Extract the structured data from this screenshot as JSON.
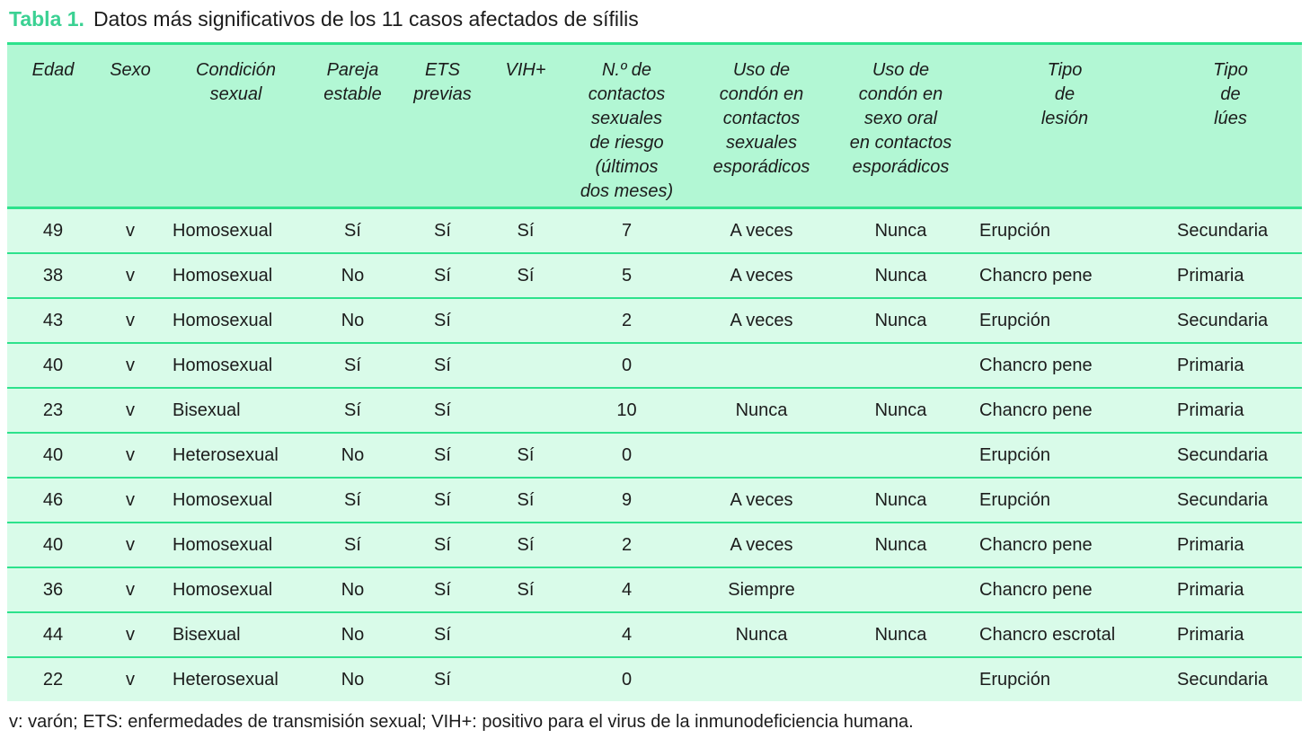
{
  "title": {
    "label": "Tabla 1.",
    "text": "Datos más significativos de los 11 casos afectados de sífilis"
  },
  "table": {
    "columns": [
      {
        "id": "edad",
        "header": "Edad"
      },
      {
        "id": "sexo",
        "header": "Sexo"
      },
      {
        "id": "condicion-sexual",
        "header": "Condición\nsexual"
      },
      {
        "id": "pareja-estable",
        "header": "Pareja\nestable"
      },
      {
        "id": "ets-previas",
        "header": "ETS\nprevias"
      },
      {
        "id": "vih",
        "header": "VIH+"
      },
      {
        "id": "contactos-riesgo",
        "header": "N.º de\ncontactos\nsexuales\nde riesgo\n(últimos\ndos meses)"
      },
      {
        "id": "condon-contactos",
        "header": "Uso de\ncondón en\ncontactos\nsexuales\nesporádicos"
      },
      {
        "id": "condon-oral",
        "header": "Uso de\ncondón en\nsexo oral\nen contactos\nesporádicos"
      },
      {
        "id": "tipo-lesion",
        "header": "Tipo\nde\nlesión"
      },
      {
        "id": "tipo-lues",
        "header": "Tipo\nde\nlúes"
      }
    ],
    "rows": [
      [
        "49",
        "v",
        "Homosexual",
        "Sí",
        "Sí",
        "Sí",
        "7",
        "A veces",
        "Nunca",
        "Erupción",
        "Secundaria"
      ],
      [
        "38",
        "v",
        "Homosexual",
        "No",
        "Sí",
        "Sí",
        "5",
        "A veces",
        "Nunca",
        "Chancro pene",
        "Primaria"
      ],
      [
        "43",
        "v",
        "Homosexual",
        "No",
        "Sí",
        "",
        "2",
        "A veces",
        "Nunca",
        "Erupción",
        "Secundaria"
      ],
      [
        "40",
        "v",
        "Homosexual",
        "Sí",
        "Sí",
        "",
        "0",
        "",
        "",
        "Chancro pene",
        "Primaria"
      ],
      [
        "23",
        "v",
        "Bisexual",
        "Sí",
        "Sí",
        "",
        "10",
        "Nunca",
        "Nunca",
        "Chancro pene",
        "Primaria"
      ],
      [
        "40",
        "v",
        "Heterosexual",
        "No",
        "Sí",
        "Sí",
        "0",
        "",
        "",
        "Erupción",
        "Secundaria"
      ],
      [
        "46",
        "v",
        "Homosexual",
        "Sí",
        "Sí",
        "Sí",
        "9",
        "A veces",
        "Nunca",
        "Erupción",
        "Secundaria"
      ],
      [
        "40",
        "v",
        "Homosexual",
        "Sí",
        "Sí",
        "Sí",
        "2",
        "A veces",
        "Nunca",
        "Chancro pene",
        "Primaria"
      ],
      [
        "36",
        "v",
        "Homosexual",
        "No",
        "Sí",
        "Sí",
        "4",
        "Siempre",
        "",
        "Chancro pene",
        "Primaria"
      ],
      [
        "44",
        "v",
        "Bisexual",
        "No",
        "Sí",
        "",
        "4",
        "Nunca",
        "Nunca",
        "Chancro escrotal",
        "Primaria"
      ],
      [
        "22",
        "v",
        "Heterosexual",
        "No",
        "Sí",
        "",
        "0",
        "",
        "",
        "Erupción",
        "Secundaria"
      ]
    ]
  },
  "footnote": "v: varón; ETS: enfermedades de transmisión sexual; VIH+: positivo para el virus de la inmunodeficiencia humana.",
  "colors": {
    "accent_green": "#3bd193",
    "header_bg": "#b2f7d4",
    "body_bg": "#d9fbe9",
    "rule_green": "#2de28c",
    "text": "#1c1c1c"
  }
}
